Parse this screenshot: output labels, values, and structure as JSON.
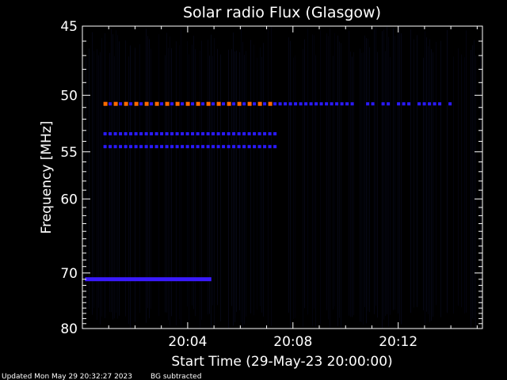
{
  "chart_data": {
    "type": "heatmap",
    "title": "Solar radio Flux (Glasgow)",
    "ylabel": "Frequency [MHz]",
    "xlabel": "Start Time (29-May-23 20:00:00)",
    "xlim_minutes": [
      0,
      15.2
    ],
    "ylim_mhz": [
      45,
      80
    ],
    "y_scale": "reciprocal",
    "x_ticks": [
      "20:04",
      "20:08",
      "20:12"
    ],
    "x_tick_minutes": [
      4,
      8,
      12
    ],
    "y_ticks": [
      45,
      50,
      55,
      60,
      70,
      80
    ],
    "background": "#000000",
    "axis_color": "#ffffff",
    "signal_bands": [
      {
        "freq_mhz": 50.7,
        "start_min": 0.8,
        "end_min": 14.0,
        "dashed": true,
        "color_strong": "#ff6a00",
        "color_weak": "#2a1aff"
      },
      {
        "freq_mhz": 53.3,
        "start_min": 0.8,
        "end_min": 7.3,
        "dashed": true,
        "color_strong": "#2a1aff",
        "color_weak": "#2a1aff"
      },
      {
        "freq_mhz": 54.5,
        "start_min": 0.8,
        "end_min": 7.3,
        "dashed": true,
        "color_strong": "#2a1aff",
        "color_weak": "#2a1aff"
      },
      {
        "freq_mhz": 71.0,
        "start_min": 0.1,
        "end_min": 4.9,
        "dashed": false,
        "color_strong": "#3a1aff",
        "color_weak": "#3a1aff"
      }
    ]
  },
  "footer": {
    "updated": "Updated Mon May 29 20:32:27 2023",
    "note": "BG subtracted"
  }
}
